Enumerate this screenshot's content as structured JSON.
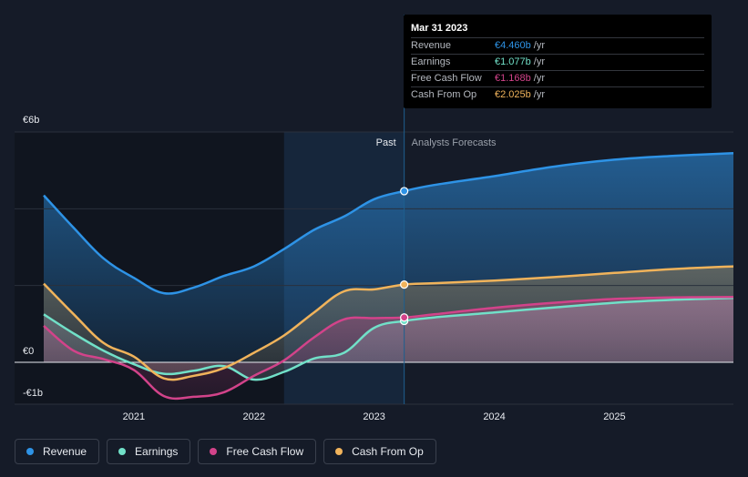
{
  "tooltip": {
    "date": "Mar 31 2023",
    "rows": [
      {
        "label": "Revenue",
        "value": "€4.460b",
        "unit": "/yr",
        "color": "#2e93e6"
      },
      {
        "label": "Earnings",
        "value": "€1.077b",
        "unit": "/yr",
        "color": "#71e0c8"
      },
      {
        "label": "Free Cash Flow",
        "value": "€1.168b",
        "unit": "/yr",
        "color": "#d2438a"
      },
      {
        "label": "Cash From Op",
        "value": "€2.025b",
        "unit": "/yr",
        "color": "#f0b35b"
      }
    ]
  },
  "regions": {
    "past": "Past",
    "forecast": "Analysts Forecasts"
  },
  "legend": [
    {
      "label": "Revenue",
      "color": "#2e93e6"
    },
    {
      "label": "Earnings",
      "color": "#71e0c8"
    },
    {
      "label": "Free Cash Flow",
      "color": "#d2438a"
    },
    {
      "label": "Cash From Op",
      "color": "#f0b35b"
    }
  ],
  "chart_data": {
    "type": "line",
    "x_unit": "year",
    "xlim": [
      2020.25,
      2025.99
    ],
    "ylim": [
      -1,
      6
    ],
    "y_ticks": [
      {
        "value": 6,
        "label": "€6b"
      },
      {
        "value": 0,
        "label": "€0"
      },
      {
        "value": -1,
        "label": "-€1b"
      }
    ],
    "x_ticks": [
      {
        "value": 2021,
        "label": "2021"
      },
      {
        "value": 2022,
        "label": "2022"
      },
      {
        "value": 2023,
        "label": "2023"
      },
      {
        "value": 2024,
        "label": "2024"
      },
      {
        "value": 2025,
        "label": "2025"
      }
    ],
    "past_start": 2022.25,
    "forecast_start": 2023.25,
    "marker_x": 2023.25,
    "series": [
      {
        "name": "Revenue",
        "color": "#2e93e6",
        "points": [
          [
            2020.25,
            4.35
          ],
          [
            2020.5,
            3.5
          ],
          [
            2020.75,
            2.7
          ],
          [
            2021.0,
            2.2
          ],
          [
            2021.25,
            1.8
          ],
          [
            2021.5,
            1.95
          ],
          [
            2021.75,
            2.25
          ],
          [
            2022.0,
            2.5
          ],
          [
            2022.25,
            2.95
          ],
          [
            2022.5,
            3.45
          ],
          [
            2022.75,
            3.8
          ],
          [
            2023.0,
            4.25
          ],
          [
            2023.25,
            4.46
          ],
          [
            2023.5,
            4.62
          ],
          [
            2024.0,
            4.85
          ],
          [
            2024.5,
            5.1
          ],
          [
            2025.0,
            5.28
          ],
          [
            2025.5,
            5.38
          ],
          [
            2025.99,
            5.45
          ]
        ]
      },
      {
        "name": "Earnings",
        "color": "#71e0c8",
        "points": [
          [
            2020.25,
            1.25
          ],
          [
            2020.5,
            0.75
          ],
          [
            2020.75,
            0.3
          ],
          [
            2021.0,
            -0.05
          ],
          [
            2021.25,
            -0.3
          ],
          [
            2021.5,
            -0.22
          ],
          [
            2021.75,
            -0.1
          ],
          [
            2022.0,
            -0.45
          ],
          [
            2022.25,
            -0.25
          ],
          [
            2022.5,
            0.1
          ],
          [
            2022.75,
            0.25
          ],
          [
            2023.0,
            0.9
          ],
          [
            2023.25,
            1.077
          ],
          [
            2023.5,
            1.17
          ],
          [
            2024.0,
            1.3
          ],
          [
            2024.5,
            1.43
          ],
          [
            2025.0,
            1.55
          ],
          [
            2025.5,
            1.63
          ],
          [
            2025.99,
            1.68
          ]
        ]
      },
      {
        "name": "Free Cash Flow",
        "color": "#d2438a",
        "points": [
          [
            2020.25,
            0.95
          ],
          [
            2020.5,
            0.3
          ],
          [
            2020.75,
            0.08
          ],
          [
            2021.0,
            -0.2
          ],
          [
            2021.25,
            -0.88
          ],
          [
            2021.5,
            -0.9
          ],
          [
            2021.75,
            -0.78
          ],
          [
            2022.0,
            -0.35
          ],
          [
            2022.25,
            0.05
          ],
          [
            2022.5,
            0.65
          ],
          [
            2022.75,
            1.12
          ],
          [
            2023.0,
            1.15
          ],
          [
            2023.25,
            1.168
          ],
          [
            2023.5,
            1.25
          ],
          [
            2024.0,
            1.42
          ],
          [
            2024.5,
            1.55
          ],
          [
            2025.0,
            1.65
          ],
          [
            2025.5,
            1.69
          ],
          [
            2025.99,
            1.7
          ]
        ]
      },
      {
        "name": "Cash From Op",
        "color": "#f0b35b",
        "points": [
          [
            2020.25,
            2.05
          ],
          [
            2020.5,
            1.25
          ],
          [
            2020.75,
            0.5
          ],
          [
            2021.0,
            0.15
          ],
          [
            2021.25,
            -0.42
          ],
          [
            2021.5,
            -0.35
          ],
          [
            2021.75,
            -0.15
          ],
          [
            2022.0,
            0.25
          ],
          [
            2022.25,
            0.7
          ],
          [
            2022.5,
            1.3
          ],
          [
            2022.75,
            1.85
          ],
          [
            2023.0,
            1.9
          ],
          [
            2023.25,
            2.025
          ],
          [
            2023.5,
            2.06
          ],
          [
            2024.0,
            2.13
          ],
          [
            2024.5,
            2.22
          ],
          [
            2025.0,
            2.33
          ],
          [
            2025.5,
            2.43
          ],
          [
            2025.99,
            2.5
          ]
        ]
      }
    ]
  }
}
